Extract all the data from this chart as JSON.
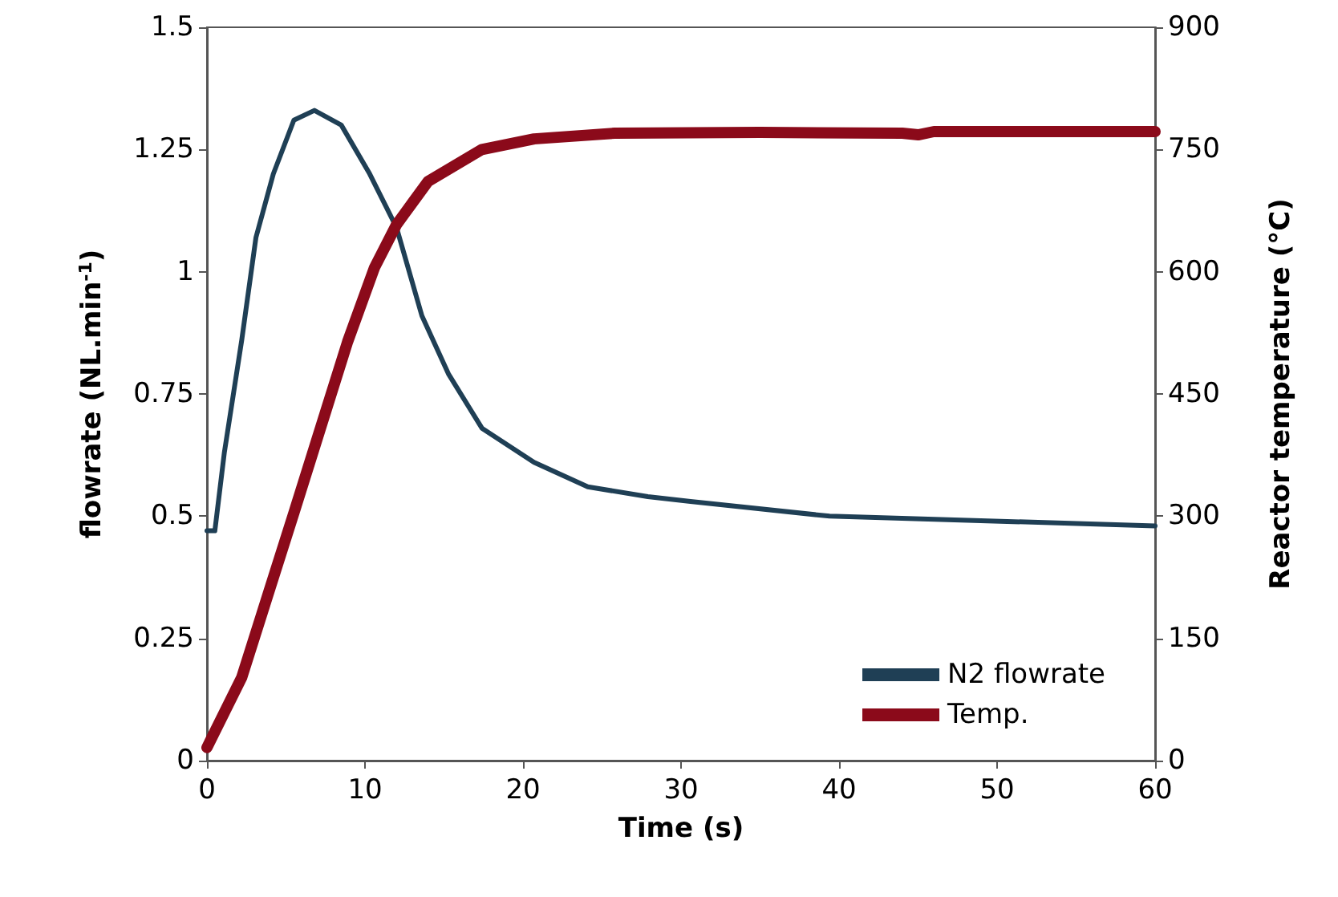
{
  "chart_data": {
    "type": "line",
    "xlabel": "Time (s)",
    "ylabel": "flowrate (NL.min$^{-1}$)",
    "y2label": "Reactor temperature (°C)",
    "xlim": [
      0,
      60
    ],
    "xticks": [
      0,
      10,
      20,
      30,
      40,
      50,
      60
    ],
    "ylim": [
      0,
      1.5
    ],
    "yticks": [
      0,
      0.25,
      0.5,
      0.75,
      1,
      1.25,
      1.5
    ],
    "y2lim": [
      0,
      900
    ],
    "y2ticks": [
      0,
      150,
      300,
      450,
      600,
      750,
      900
    ],
    "grid": false,
    "legend": "bottom right",
    "marker": "none",
    "line_style": "solid",
    "series": [
      {
        "name": "N2 flowrate",
        "color": "#1f3f55",
        "x": [
          0,
          0.5,
          1.1,
          2.2,
          3.1,
          4.2,
          5.5,
          6.8,
          8.5,
          10.3,
          12,
          13.6,
          15.3,
          17.4,
          20.7,
          24.1,
          27.9,
          30.6,
          39.4,
          49.8,
          60
        ],
        "values": [
          0.47,
          0.47,
          0.63,
          0.86,
          1.07,
          1.2,
          1.31,
          1.33,
          1.3,
          1.2,
          1.09,
          0.91,
          0.79,
          0.68,
          0.61,
          0.56,
          0.54,
          0.53,
          0.5,
          0.49,
          0.48
        ]
      },
      {
        "name": "Temp.",
        "color": "#8b0a1a",
        "axis": "y2",
        "x": [
          0,
          2.2,
          3.8,
          5.5,
          7.2,
          8.9,
          10.6,
          12,
          14,
          17.4,
          20.7,
          25.8,
          35,
          44,
          45,
          46,
          60
        ],
        "values": [
          16,
          102,
          200,
          304,
          409,
          514,
          605,
          658,
          711,
          750,
          763,
          770,
          771,
          770,
          768,
          772,
          772
        ]
      }
    ]
  }
}
